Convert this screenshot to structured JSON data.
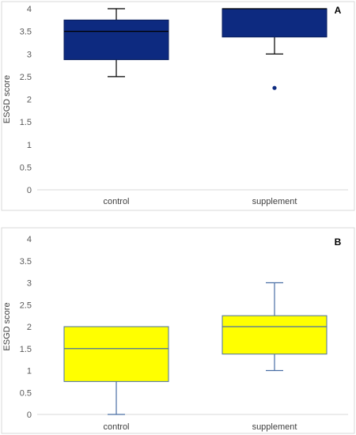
{
  "chart_data": [
    {
      "type": "box",
      "panel_label": "A",
      "ylabel": "ESGD score",
      "ylim": [
        0,
        4
      ],
      "yticks": [
        "0",
        "0.5",
        "1",
        "1.5",
        "2",
        "2.5",
        "3",
        "3.5",
        "4"
      ],
      "categories": [
        "control",
        "supplement"
      ],
      "box_fill": "#0d2a80",
      "box_stroke": "#0a1f5c",
      "whisker_color": "#000000",
      "median_color": "#000000",
      "boxes": [
        {
          "category": "control",
          "min": 2.5,
          "q1": 2.875,
          "median": 3.5,
          "q3": 3.75,
          "max": 4,
          "outliers": []
        },
        {
          "category": "supplement",
          "min": 3,
          "q1": 3.375,
          "median": 4,
          "q3": 4,
          "max": 4,
          "outliers": [
            2.25
          ]
        }
      ],
      "grid": false,
      "legend": "none"
    },
    {
      "type": "box",
      "panel_label": "B",
      "ylabel": "ESGD score",
      "ylim": [
        0,
        4
      ],
      "yticks": [
        "0",
        "0.5",
        "1",
        "1.5",
        "2",
        "2.5",
        "3",
        "3.5",
        "4"
      ],
      "categories": [
        "control",
        "supplement"
      ],
      "box_fill": "#ffff00",
      "box_stroke": "#4a6fa5",
      "whisker_color": "#4a6fa5",
      "median_color": "#4a6fa5",
      "boxes": [
        {
          "category": "control",
          "min": 0,
          "q1": 0.75,
          "median": 1.5,
          "q3": 2,
          "max": 2,
          "outliers": []
        },
        {
          "category": "supplement",
          "min": 1,
          "q1": 1.375,
          "median": 2,
          "q3": 2.25,
          "max": 3,
          "outliers": []
        }
      ],
      "grid": false,
      "legend": "none"
    }
  ]
}
